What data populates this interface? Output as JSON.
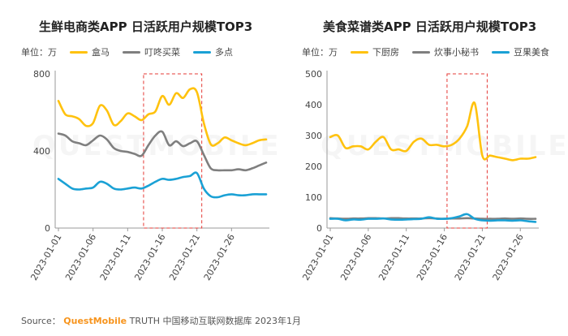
{
  "source": {
    "prefix": "Source：",
    "brand": "QuestMobile",
    "rest": "TRUTH 中国移动互联网数据库 2023年1月"
  },
  "watermark": "QUESTMOBILE",
  "chart_data": [
    {
      "type": "line",
      "title": "生鲜电商类APP 日活跃用户规模TOP3",
      "unit": "单位：万",
      "ylim": [
        0,
        800
      ],
      "yticks": [
        0,
        400,
        800
      ],
      "x": [
        "2023-01-01",
        "2023-01-02",
        "2023-01-03",
        "2023-01-04",
        "2023-01-05",
        "2023-01-06",
        "2023-01-07",
        "2023-01-08",
        "2023-01-09",
        "2023-01-10",
        "2023-01-11",
        "2023-01-12",
        "2023-01-13",
        "2023-01-14",
        "2023-01-15",
        "2023-01-16",
        "2023-01-17",
        "2023-01-18",
        "2023-01-19",
        "2023-01-20",
        "2023-01-21",
        "2023-01-22",
        "2023-01-23",
        "2023-01-24",
        "2023-01-25",
        "2023-01-26",
        "2023-01-27",
        "2023-01-28",
        "2023-01-29",
        "2023-01-30",
        "2023-01-31"
      ],
      "xticks": [
        "2023-01-01",
        "2023-01-06",
        "2023-01-11",
        "2023-01-16",
        "2023-01-21",
        "2023-01-26"
      ],
      "highlight": [
        "2023-01-14",
        "2023-01-21"
      ],
      "grid": false,
      "legend_position": "top",
      "series": [
        {
          "name": "盒马",
          "color": "#FFC20E",
          "values": [
            660,
            590,
            580,
            565,
            530,
            545,
            635,
            610,
            535,
            555,
            595,
            580,
            560,
            590,
            605,
            685,
            640,
            700,
            675,
            720,
            705,
            545,
            435,
            440,
            470,
            455,
            440,
            430,
            440,
            455,
            460
          ]
        },
        {
          "name": "叮咚买菜",
          "color": "#7F7F7F",
          "values": [
            490,
            480,
            450,
            440,
            430,
            455,
            480,
            460,
            415,
            400,
            395,
            385,
            375,
            430,
            480,
            500,
            430,
            450,
            425,
            440,
            450,
            380,
            310,
            300,
            300,
            300,
            305,
            300,
            310,
            325,
            340
          ]
        },
        {
          "name": "多点",
          "color": "#1AA1D5",
          "values": [
            255,
            230,
            205,
            200,
            205,
            210,
            240,
            230,
            205,
            200,
            205,
            210,
            205,
            220,
            240,
            255,
            250,
            255,
            265,
            270,
            285,
            205,
            165,
            160,
            170,
            175,
            170,
            170,
            175,
            175,
            175
          ]
        }
      ]
    },
    {
      "type": "line",
      "title": "美食菜谱类APP 日活跃用户规模TOP3",
      "unit": "单位：万",
      "ylim": [
        0,
        500
      ],
      "yticks": [
        0,
        100,
        200,
        300,
        400,
        500
      ],
      "x": [
        "2023-01-01",
        "2023-01-02",
        "2023-01-03",
        "2023-01-04",
        "2023-01-05",
        "2023-01-06",
        "2023-01-07",
        "2023-01-08",
        "2023-01-09",
        "2023-01-10",
        "2023-01-11",
        "2023-01-12",
        "2023-01-13",
        "2023-01-14",
        "2023-01-15",
        "2023-01-16",
        "2023-01-17",
        "2023-01-18",
        "2023-01-19",
        "2023-01-20",
        "2023-01-21",
        "2023-01-22",
        "2023-01-23",
        "2023-01-24",
        "2023-01-25",
        "2023-01-26",
        "2023-01-27",
        "2023-01-28"
      ],
      "xticks": [
        "2023-01-01",
        "2023-01-06",
        "2023-01-11",
        "2023-01-16",
        "2023-01-21",
        "2023-01-26"
      ],
      "highlight": [
        "2023-01-17",
        "2023-01-21"
      ],
      "grid": false,
      "legend_position": "top",
      "series": [
        {
          "name": "下厨房",
          "color": "#FFC20E",
          "values": [
            295,
            300,
            260,
            265,
            265,
            255,
            280,
            295,
            255,
            255,
            250,
            280,
            290,
            270,
            270,
            265,
            270,
            290,
            330,
            405,
            235,
            235,
            230,
            225,
            220,
            225,
            225,
            230
          ]
        },
        {
          "name": "炊事小秘书",
          "color": "#7F7F7F",
          "values": [
            32,
            31,
            30,
            31,
            31,
            32,
            32,
            31,
            32,
            32,
            31,
            31,
            31,
            32,
            31,
            30,
            31,
            31,
            32,
            31,
            30,
            30,
            30,
            31,
            30,
            31,
            30,
            30
          ]
        },
        {
          "name": "豆果美食",
          "color": "#1AA1D5",
          "values": [
            30,
            30,
            25,
            28,
            27,
            30,
            30,
            31,
            28,
            27,
            28,
            29,
            30,
            35,
            30,
            30,
            32,
            38,
            45,
            30,
            25,
            24,
            25,
            25,
            24,
            25,
            22,
            20
          ]
        }
      ]
    }
  ]
}
